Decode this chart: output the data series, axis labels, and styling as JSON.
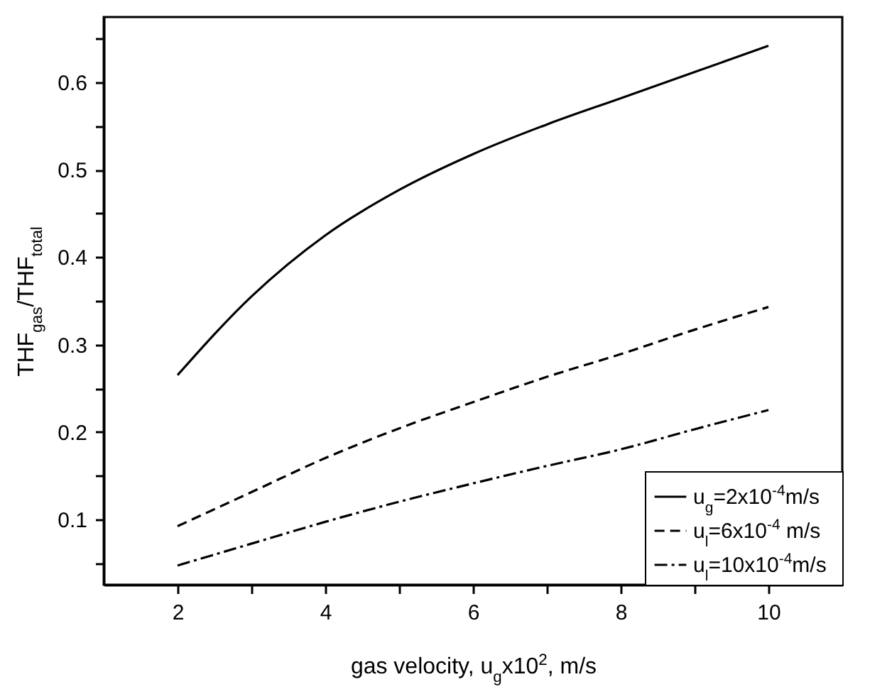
{
  "chart_data": {
    "type": "line",
    "xlabel": "gas velocity, u$_{g}$x10$^{2}$, m/s",
    "ylabel": "THF$_{gas}$/THF$_{total}$",
    "x": [
      2,
      3,
      4,
      5,
      6,
      7,
      8,
      9,
      10
    ],
    "series": [
      {
        "name": "u$_{g}$=2x10$^{-4}$m/s",
        "color": "#000000",
        "line_style": "solid",
        "values": [
          0.265,
          0.355,
          0.425,
          0.477,
          0.518,
          0.552,
          0.582,
          0.612,
          0.642
        ]
      },
      {
        "name": "u$_{l}$=6x10$^{-4}$ m/s",
        "color": "#000000",
        "line_style": "dashed",
        "values": [
          0.092,
          0.131,
          0.17,
          0.204,
          0.234,
          0.263,
          0.289,
          0.317,
          0.343
        ]
      },
      {
        "name": "u$_{l}$=10x10$^{-4}$m/s",
        "color": "#000000",
        "line_style": "dashdot",
        "values": [
          0.047,
          0.072,
          0.097,
          0.12,
          0.141,
          0.161,
          0.18,
          0.203,
          0.225
        ]
      }
    ],
    "xlim": [
      1,
      11
    ],
    "xticks": [
      2,
      {
        "value": 3,
        "label": null
      },
      4,
      {
        "value": 5,
        "label": null
      },
      6,
      {
        "value": 7,
        "label": null
      },
      8,
      {
        "value": 9,
        "label": null
      },
      10
    ],
    "ylim": [
      0.025,
      0.675
    ],
    "yticks": [
      {
        "value": 0.05,
        "label": null
      },
      0.1,
      {
        "value": 0.15,
        "label": null
      },
      0.2,
      {
        "value": 0.25,
        "label": null
      },
      0.3,
      {
        "value": 0.35,
        "label": null
      },
      0.4,
      {
        "value": 0.45,
        "label": null
      },
      0.5,
      {
        "value": 0.55,
        "label": null
      },
      0.6,
      {
        "value": 0.65,
        "label": null
      }
    ],
    "grid": false,
    "legend": "bottom right",
    "marker": "none"
  }
}
